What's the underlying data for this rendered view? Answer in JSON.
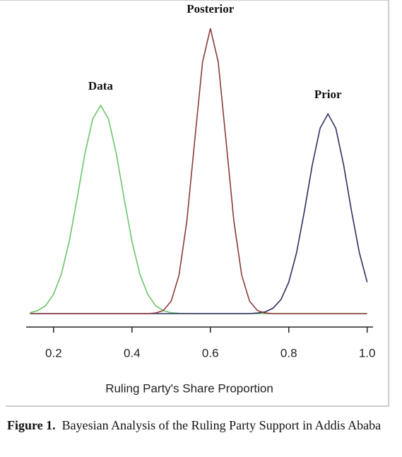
{
  "chart_data": {
    "type": "line",
    "x_label": "Ruling Party's Share Proportion",
    "x": [
      0.14,
      0.16,
      0.18,
      0.2,
      0.22,
      0.24,
      0.26,
      0.28,
      0.3,
      0.32,
      0.34,
      0.36,
      0.38,
      0.4,
      0.42,
      0.44,
      0.46,
      0.48,
      0.5,
      0.52,
      0.54,
      0.56,
      0.58,
      0.6,
      0.62,
      0.64,
      0.66,
      0.68,
      0.7,
      0.72,
      0.74,
      0.76,
      0.78,
      0.8,
      0.82,
      0.84,
      0.86,
      0.88,
      0.9,
      0.92,
      0.94,
      0.96,
      0.98,
      1.0
    ],
    "series": [
      {
        "name": "Data",
        "color": "#6cc46c",
        "values": [
          0.03,
          0.11,
          0.28,
          0.68,
          1.39,
          2.53,
          4.03,
          5.61,
          6.83,
          7.3,
          6.83,
          5.61,
          4.03,
          2.53,
          1.39,
          0.68,
          0.28,
          0.11,
          0.03,
          0.01,
          0,
          0,
          0,
          0,
          0,
          0,
          0,
          0,
          0,
          0,
          0,
          0,
          0,
          0,
          0,
          0,
          0,
          0,
          0,
          0,
          0,
          0,
          0,
          0
        ]
      },
      {
        "name": "Prior",
        "color": "#2e2e60",
        "values": [
          0,
          0,
          0,
          0,
          0,
          0,
          0,
          0,
          0,
          0,
          0,
          0,
          0,
          0,
          0,
          0,
          0,
          0,
          0,
          0,
          0,
          0,
          0,
          0,
          0,
          0,
          0,
          0,
          0,
          0.02,
          0.06,
          0.19,
          0.49,
          1.1,
          2.14,
          3.6,
          5.21,
          6.5,
          7,
          6.5,
          5.21,
          3.6,
          2.14,
          1.1
        ]
      },
      {
        "name": "Posterior",
        "color": "#8b3a3a",
        "values": [
          0,
          0,
          0,
          0,
          0,
          0,
          0,
          0,
          0,
          0,
          0,
          0,
          0,
          0,
          0,
          0,
          0.02,
          0.11,
          0.44,
          1.35,
          3.25,
          6.07,
          8.82,
          10,
          8.82,
          6.07,
          3.25,
          1.35,
          0.44,
          0.11,
          0.02,
          0,
          0,
          0,
          0,
          0,
          0,
          0,
          0,
          0,
          0,
          0,
          0,
          0
        ]
      }
    ],
    "xlim": [
      0.13,
      1.015
    ],
    "ylim": [
      0,
      10.4
    ],
    "xticks": [
      {
        "value": 0.2,
        "label": "0.2"
      },
      {
        "value": 0.4,
        "label": "0.4"
      },
      {
        "value": 0.6,
        "label": "0.6"
      },
      {
        "value": 0.8,
        "label": "0.8"
      },
      {
        "value": 1.0,
        "label": "1.0"
      }
    ]
  },
  "caption": {
    "label": "Figure 1.",
    "text": "Bayesian Analysis of the Ruling Party Support in Addis Ababa"
  }
}
